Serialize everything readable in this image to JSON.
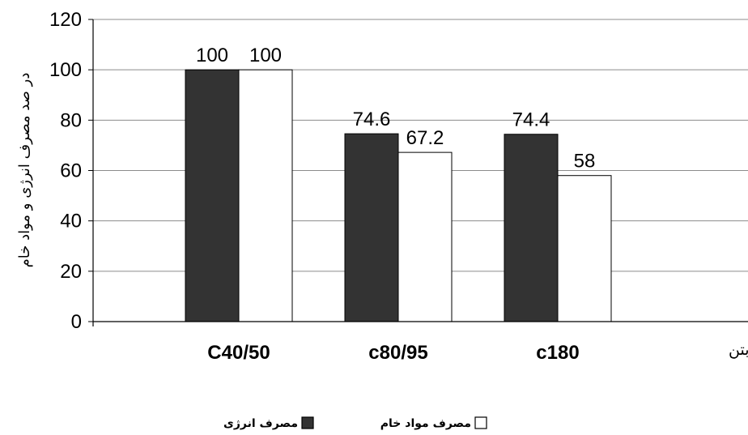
{
  "chart_data": {
    "type": "bar",
    "categories": [
      "C40/50",
      "c80/95",
      "c180"
    ],
    "series": [
      {
        "name": "مصرف انرژی",
        "values": [
          100,
          74.6,
          74.4
        ],
        "color": "#333333"
      },
      {
        "name": "مصرف مواد خام",
        "values": [
          100,
          67.2,
          58
        ],
        "color": "#ffffff"
      }
    ],
    "data_labels": [
      [
        "100",
        "74.6",
        "74.4"
      ],
      [
        "100",
        "67.2",
        "58"
      ]
    ],
    "ylabel": "در صد مصرف انرژی و مواد خام",
    "xlabel": "رده بتن",
    "ylim": [
      0,
      120
    ],
    "yticks": [
      "0",
      "20",
      "40",
      "60",
      "80",
      "100",
      "120"
    ],
    "grid": true,
    "legend": "bottom"
  }
}
